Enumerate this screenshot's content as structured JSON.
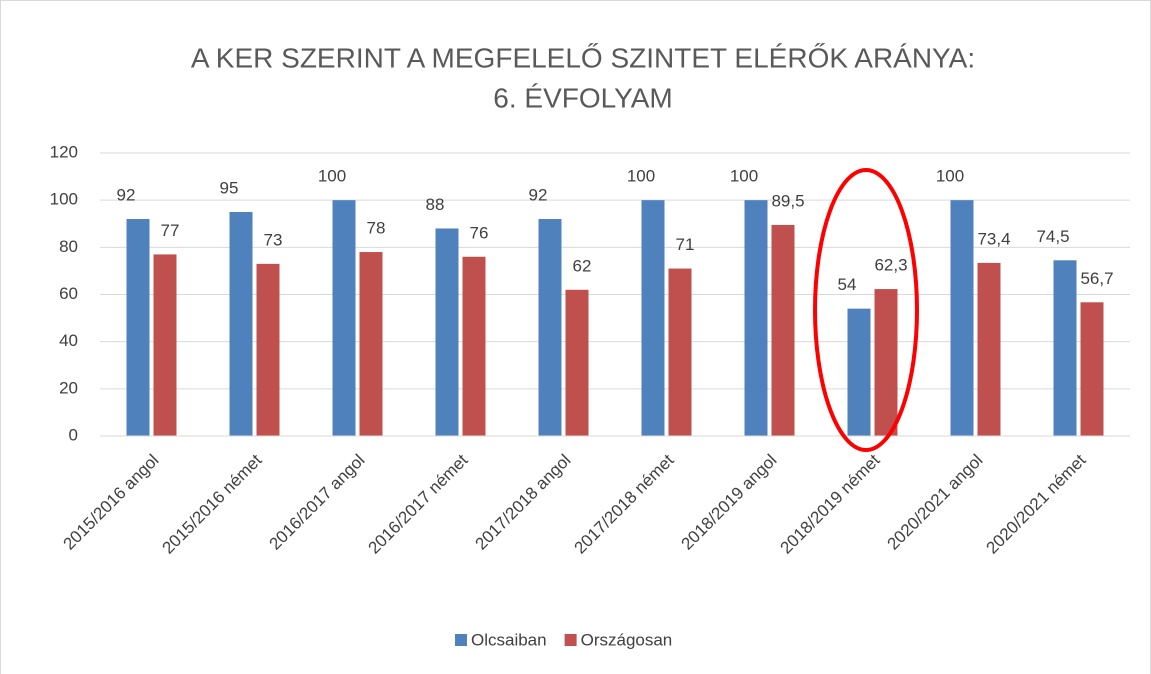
{
  "chart_data": {
    "type": "bar",
    "title": [
      "A KER SZERINT A MEGFELELŐ SZINTET ELÉRŐK ARÁNYA:",
      "6. ÉVFOLYAM"
    ],
    "categories": [
      "2015/2016 angol",
      "2015/2016 német",
      "2016/2017 angol",
      "2016/2017 német",
      "2017/2018 angol",
      "2017/2018 német",
      "2018/2019 angol",
      "2018/2019 német",
      "2020/2021 angol",
      "2020/2021 német"
    ],
    "series": [
      {
        "name": "Olcsaiban",
        "color": "#4f81bd",
        "values": [
          92,
          95,
          100,
          88,
          92,
          100,
          100,
          54,
          100,
          74.5
        ],
        "value_labels": [
          "92",
          "95",
          "100",
          "88",
          "92",
          "100",
          "100",
          "54",
          "100",
          "74,5"
        ]
      },
      {
        "name": "Országosan",
        "color": "#c0504d",
        "values": [
          77,
          73,
          78,
          76,
          62,
          71,
          89.5,
          62.3,
          73.4,
          56.7
        ],
        "value_labels": [
          "77",
          "73",
          "78",
          "76",
          "62",
          "71",
          "89,5",
          "62,3",
          "73,4",
          "56,7"
        ]
      }
    ],
    "ylim": [
      0,
      120
    ],
    "yticks": [
      0,
      20,
      40,
      60,
      80,
      100,
      120
    ],
    "grid": true,
    "legend": "bottom"
  }
}
